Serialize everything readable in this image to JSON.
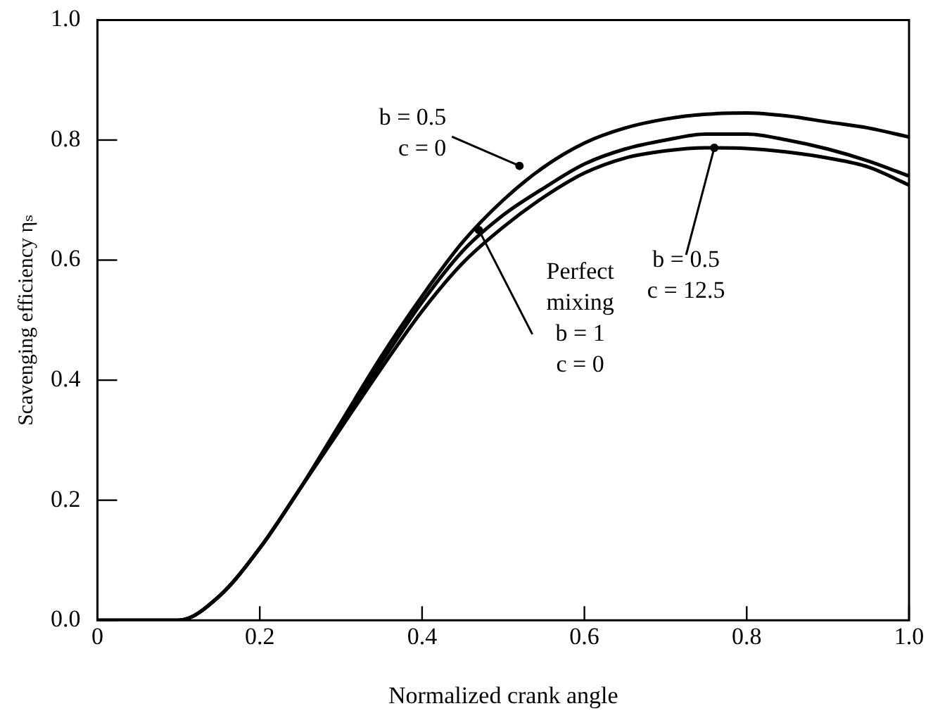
{
  "chart_data": {
    "type": "line",
    "xlabel": "Normalized crank angle",
    "ylabel": "Scavenging efficiency ηₛ",
    "x": [
      0,
      0.1,
      0.15,
      0.2,
      0.25,
      0.3,
      0.35,
      0.4,
      0.45,
      0.5,
      0.55,
      0.6,
      0.65,
      0.7,
      0.75,
      0.8,
      0.85,
      0.9,
      0.95,
      1.0
    ],
    "series": [
      {
        "color": "#000000",
        "values": [
          0,
          0,
          0.04,
          0.12,
          0.22,
          0.33,
          0.44,
          0.54,
          0.63,
          0.7,
          0.755,
          0.795,
          0.82,
          0.835,
          0.843,
          0.845,
          0.84,
          0.83,
          0.82,
          0.805
        ]
      },
      {
        "color": "#000000",
        "values": [
          0,
          0,
          0.04,
          0.12,
          0.22,
          0.325,
          0.43,
          0.53,
          0.615,
          0.675,
          0.72,
          0.76,
          0.785,
          0.8,
          0.81,
          0.81,
          0.8,
          0.785,
          0.765,
          0.74
        ]
      },
      {
        "color": "#000000",
        "values": [
          0,
          0,
          0.04,
          0.12,
          0.22,
          0.32,
          0.42,
          0.515,
          0.595,
          0.655,
          0.705,
          0.745,
          0.77,
          0.782,
          0.787,
          0.786,
          0.78,
          0.77,
          0.755,
          0.725
        ]
      }
    ],
    "xlim": [
      0,
      1
    ],
    "xticks": [
      0,
      0.2,
      0.4,
      0.6,
      0.8,
      {
        "value": 1,
        "label": "1.0"
      }
    ],
    "ylim": [
      0,
      1
    ],
    "yticks": [
      {
        "value": 0,
        "label": "0.0"
      },
      0.2,
      0.4,
      0.6,
      0.8,
      {
        "value": 1,
        "label": "1.0"
      }
    ],
    "grid": false,
    "legend": false,
    "marker": "none",
    "line_style": "solid",
    "annotations": [
      {
        "text": "b = 0.5\nc = 0",
        "x": 0.52,
        "y": 0.757
      },
      {
        "text": "Perfect\nmixing\nb = 1\nc = 0",
        "x": 0.47,
        "y": 0.65
      },
      {
        "text": "b = 0.5\nc = 12.5",
        "x": 0.76,
        "y": 0.787
      }
    ]
  }
}
